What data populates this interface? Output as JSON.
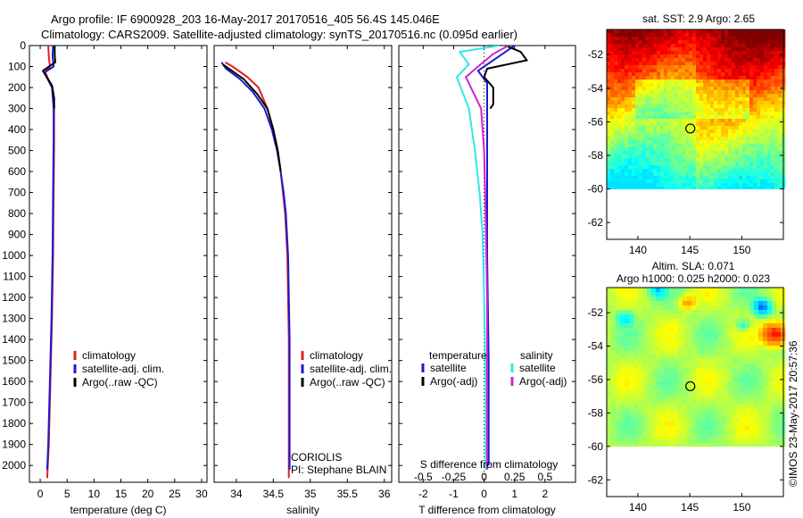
{
  "header": {
    "line1": "Argo profile: IF 6900928_203 16-May-2017 20170516_405 56.4S 145.046E",
    "line2": "Climatology: CARS2009. Satellite-adjusted climatology: synTS_20170516.nc (0.095d earlier)"
  },
  "colors": {
    "climatology": "#e02020",
    "satellite": "#1a1ad0",
    "argo": "#000000",
    "satellite_s": "#30e8e8",
    "argo_s": "#d020d0"
  },
  "depth_axis": {
    "range": [
      2080,
      0
    ],
    "ticks": [
      0,
      100,
      200,
      300,
      400,
      500,
      600,
      700,
      800,
      900,
      1000,
      1100,
      1200,
      1300,
      1400,
      1500,
      1600,
      1700,
      1800,
      1900,
      2000
    ]
  },
  "chart_data": [
    {
      "type": "line",
      "id": "temperature",
      "xlabel": "temperature (deg C)",
      "xlim": [
        -2,
        31
      ],
      "xticks": [
        0,
        5,
        10,
        15,
        20,
        25,
        30
      ],
      "legend": {
        "items": [
          "climatology",
          "satellite-adj. clim.",
          "Argo(..raw -QC)"
        ],
        "placement": "bottom-center"
      },
      "series": [
        {
          "name": "climatology",
          "color_key": "climatology",
          "points": [
            [
              1.5,
              0
            ],
            [
              1.6,
              50
            ],
            [
              1.8,
              100
            ],
            [
              0.9,
              125
            ],
            [
              1.5,
              160
            ],
            [
              2.3,
              200
            ],
            [
              2.6,
              300
            ],
            [
              2.6,
              450
            ],
            [
              2.5,
              700
            ],
            [
              2.4,
              1000
            ],
            [
              2.2,
              1300
            ],
            [
              1.9,
              1600
            ],
            [
              1.6,
              1900
            ],
            [
              1.3,
              2060
            ]
          ]
        },
        {
          "name": "satellite-adj. clim.",
          "color_key": "satellite",
          "points": [
            [
              2.4,
              0
            ],
            [
              2.3,
              50
            ],
            [
              2.5,
              100
            ],
            [
              0.8,
              128
            ],
            [
              1.4,
              160
            ],
            [
              2.2,
              200
            ],
            [
              2.5,
              300
            ],
            [
              2.5,
              450
            ],
            [
              2.4,
              700
            ],
            [
              2.3,
              1000
            ],
            [
              2.1,
              1300
            ],
            [
              1.8,
              1600
            ],
            [
              1.5,
              1900
            ],
            [
              1.3,
              2020
            ]
          ]
        },
        {
          "name": "Argo(..raw -QC)",
          "color_key": "argo",
          "points": [
            [
              2.7,
              0
            ],
            [
              2.7,
              40
            ],
            [
              2.8,
              80
            ],
            [
              0.5,
              120
            ],
            [
              1.2,
              150
            ],
            [
              2.2,
              190
            ],
            [
              2.6,
              250
            ],
            [
              2.6,
              300
            ]
          ]
        }
      ]
    },
    {
      "type": "line",
      "id": "salinity",
      "xlabel": "salinity",
      "xlim": [
        33.7,
        36.1
      ],
      "xticks": [
        34,
        34.5,
        35,
        35.5,
        36
      ],
      "legend": {
        "items": [
          "climatology",
          "satellite-adj. clim.",
          "Argo(..raw -QC)"
        ],
        "placement": "bottom-center"
      },
      "annotations": [
        "CORIOLIS",
        "PI: Stephane BLAIN"
      ],
      "series": [
        {
          "name": "climatology",
          "color_key": "climatology",
          "points": [
            [
              33.85,
              80
            ],
            [
              33.95,
              100
            ],
            [
              34.15,
              150
            ],
            [
              34.3,
              200
            ],
            [
              34.42,
              300
            ],
            [
              34.5,
              400
            ],
            [
              34.56,
              500
            ],
            [
              34.6,
              600
            ],
            [
              34.63,
              700
            ],
            [
              34.66,
              800
            ],
            [
              34.69,
              1000
            ],
            [
              34.71,
              1400
            ],
            [
              34.71,
              1800
            ],
            [
              34.71,
              2060
            ]
          ]
        },
        {
          "name": "satellite-adj. clim.",
          "color_key": "satellite",
          "points": [
            [
              33.8,
              80
            ],
            [
              33.86,
              110
            ],
            [
              34.05,
              160
            ],
            [
              34.22,
              220
            ],
            [
              34.38,
              300
            ],
            [
              34.48,
              400
            ],
            [
              34.55,
              500
            ],
            [
              34.6,
              600
            ],
            [
              34.64,
              700
            ],
            [
              34.67,
              800
            ],
            [
              34.7,
              1000
            ],
            [
              34.72,
              1400
            ],
            [
              34.72,
              1800
            ],
            [
              34.72,
              2020
            ]
          ]
        },
        {
          "name": "Argo(..raw -QC)",
          "color_key": "argo",
          "points": [
            [
              33.82,
              90
            ],
            [
              33.9,
              110
            ],
            [
              34.1,
              160
            ],
            [
              34.28,
              230
            ],
            [
              34.42,
              300
            ],
            [
              34.5,
              400
            ],
            [
              34.56,
              500
            ],
            [
              34.6,
              600
            ]
          ]
        }
      ]
    },
    {
      "type": "line",
      "id": "difference",
      "title": "S difference from climatology",
      "xlabel": "T difference from climatology",
      "t_xlim": [
        -2.8,
        3
      ],
      "t_xticks": [
        -2,
        -1,
        0,
        1,
        2
      ],
      "s_xticks": [
        {
          "label": "-0.5",
          "t": -2
        },
        {
          "label": "-0.25",
          "t": -1
        },
        {
          "label": "0",
          "t": 0
        },
        {
          "label": "0.25",
          "t": 1
        },
        {
          "label": "0.5",
          "t": 2
        }
      ],
      "legend": {
        "items": [
          "temperature",
          "satellite",
          "Argo(-adj)",
          "salinity",
          "satellite",
          "Argo(-adj)"
        ],
        "placement": "bottom-center"
      },
      "series": [
        {
          "name": "satellite",
          "color_key": "satellite",
          "points": [
            [
              1.0,
              0
            ],
            [
              0.6,
              40
            ],
            [
              0.2,
              80
            ],
            [
              -0.2,
              120
            ],
            [
              0.1,
              180
            ],
            [
              0.1,
              300
            ],
            [
              0.1,
              600
            ],
            [
              0.1,
              1000
            ],
            [
              0.15,
              1500
            ],
            [
              0.15,
              2000
            ]
          ]
        },
        {
          "name": "Argo(-adj)",
          "color_key": "argo",
          "points": [
            [
              0.7,
              0
            ],
            [
              1.2,
              30
            ],
            [
              1.4,
              70
            ],
            [
              0.1,
              110
            ],
            [
              0.0,
              150
            ],
            [
              0.3,
              200
            ],
            [
              0.3,
              280
            ],
            [
              0.2,
              300
            ]
          ]
        },
        {
          "name": "satellite",
          "color_key": "satellite_s",
          "points": [
            [
              0.5,
              0
            ],
            [
              -0.8,
              30
            ],
            [
              -0.5,
              90
            ],
            [
              -0.9,
              150
            ],
            [
              -0.5,
              300
            ],
            [
              -0.3,
              500
            ],
            [
              -0.15,
              700
            ],
            [
              -0.05,
              900
            ],
            [
              0.0,
              1200
            ],
            [
              0.05,
              1600
            ],
            [
              0.05,
              2020
            ]
          ]
        },
        {
          "name": "Argo(-adj)",
          "color_key": "argo_s",
          "points": [
            [
              0.8,
              0
            ],
            [
              0.3,
              40
            ],
            [
              -0.2,
              100
            ],
            [
              -0.6,
              150
            ],
            [
              -0.1,
              300
            ],
            [
              0.0,
              500
            ],
            [
              0.05,
              800
            ],
            [
              0.1,
              1200
            ],
            [
              0.1,
              1600
            ],
            [
              0.1,
              2020
            ]
          ]
        }
      ]
    },
    {
      "type": "heatmap",
      "id": "sst-map",
      "title": "sat. SST: 2.9  Argo: 2.65",
      "xlim": [
        137,
        154
      ],
      "ylim": [
        -63,
        -50.5
      ],
      "xticks": [
        140,
        145,
        150
      ],
      "yticks": [
        -52,
        -54,
        -56,
        -58,
        -60,
        -62
      ],
      "marker": [
        145.046,
        -56.4
      ],
      "colormap": "jet",
      "data_bottom": -60
    },
    {
      "type": "heatmap",
      "id": "sla-map",
      "title_line1": "Altim. SLA: 0.071",
      "title_line2": "Argo h1000: 0.025 h2000: 0.023",
      "xlim": [
        137,
        154
      ],
      "ylim": [
        -63,
        -50.5
      ],
      "xticks": [
        140,
        145,
        150
      ],
      "yticks": [
        -52,
        -54,
        -56,
        -58,
        -60,
        -62
      ],
      "marker": [
        145.046,
        -56.4
      ],
      "colormap": "jet",
      "data_bottom": -60
    }
  ],
  "credit": "©IMOS 23-May-2017 20:57:36"
}
